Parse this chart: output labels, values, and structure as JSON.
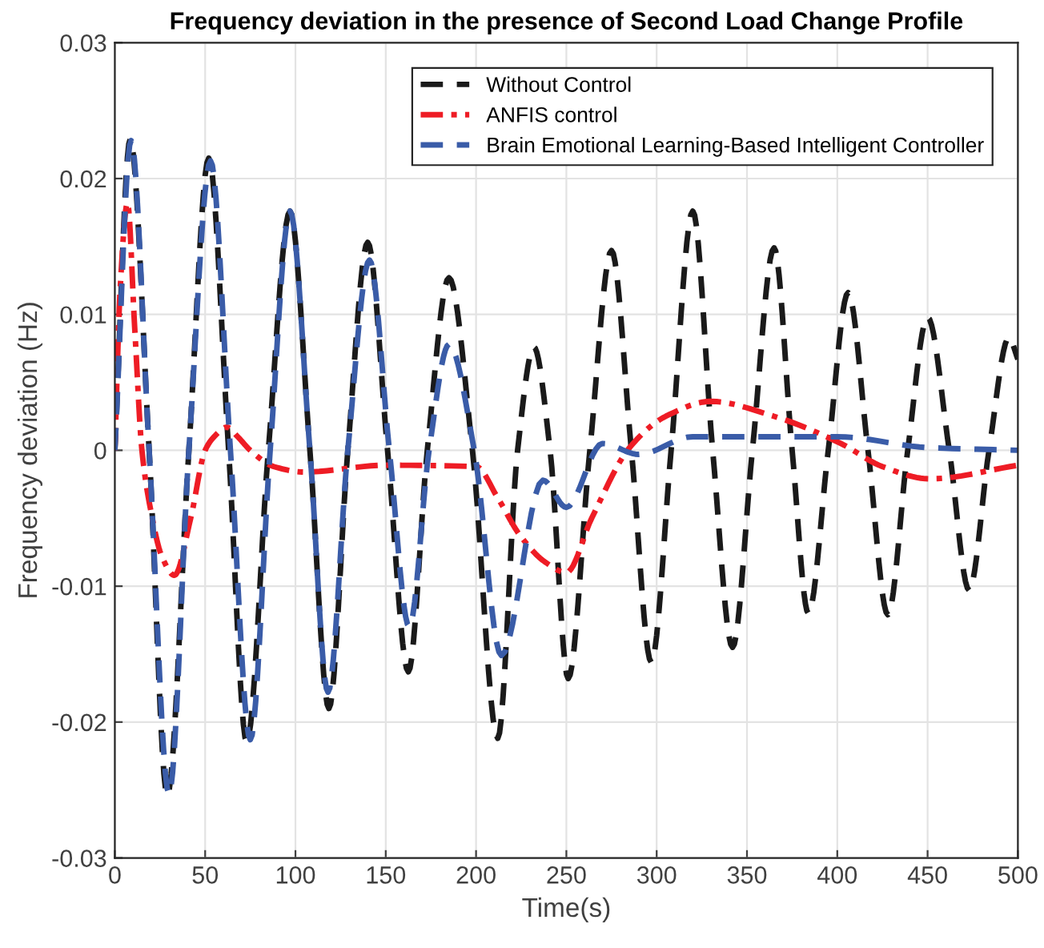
{
  "chart_data": {
    "type": "line",
    "title": "Frequency deviation in the presence of Second Load Change Profile",
    "xlabel": "Time(s)",
    "ylabel": "Frequency deviation (Hz)",
    "xlim": [
      0,
      500
    ],
    "xticks": [
      0,
      50,
      100,
      150,
      200,
      250,
      300,
      350,
      400,
      450,
      500
    ],
    "ylim": [
      -0.03,
      0.03
    ],
    "yticks": [
      -0.03,
      -0.02,
      -0.01,
      0,
      0.01,
      0.02,
      0.03
    ],
    "grid": true,
    "legend": "top right",
    "series": [
      {
        "name": "Without Control",
        "color": "#1a1a1a",
        "line_style": "dashed",
        "x": [
          0,
          8.5,
          19,
          29,
          41,
          52,
          63,
          73,
          85,
          97,
          108,
          118.5,
          129,
          140,
          151,
          162.5,
          173,
          185,
          198,
          212,
          223,
          232,
          241,
          251,
          263,
          275,
          286,
          297,
          308,
          320,
          331,
          342,
          353,
          365,
          375,
          384,
          395,
          406,
          417,
          428,
          439,
          450,
          462,
          473,
          484,
          495,
          500
        ],
        "values": [
          0,
          0.0229,
          0,
          -0.0254,
          0,
          0.0215,
          0,
          -0.0215,
          0,
          0.0176,
          0,
          -0.019,
          0,
          0.0153,
          0,
          -0.0163,
          0,
          0.0127,
          0,
          -0.0212,
          0,
          0.0076,
          0,
          -0.0168,
          0,
          0.0147,
          0,
          -0.0156,
          0,
          0.0176,
          0,
          -0.0145,
          0,
          0.0149,
          0,
          -0.012,
          0,
          0.0116,
          0,
          -0.0121,
          0,
          0.0098,
          0,
          -0.0103,
          0,
          0.0083,
          0.0067
        ]
      },
      {
        "name": "ANFIS control",
        "color": "#ee1c25",
        "line_style": "dashdot",
        "x": [
          0,
          3,
          7,
          11,
          15,
          20,
          26,
          33,
          42,
          50,
          55,
          62,
          68,
          75,
          88,
          105,
          150,
          200,
          212,
          224,
          238,
          250,
          264,
          285,
          305,
          330,
          365,
          402,
          425,
          451,
          500
        ],
        "values": [
          0,
          0.012,
          0.0182,
          0.009,
          0,
          -0.0045,
          -0.0078,
          -0.0092,
          -0.005,
          0,
          0.001,
          0.0017,
          0.001,
          0,
          -0.0012,
          -0.0016,
          -0.0011,
          -0.0012,
          -0.0035,
          -0.0062,
          -0.0082,
          -0.009,
          -0.005,
          0.0002,
          0.0025,
          0.0036,
          0.0025,
          0.0005,
          -0.0012,
          -0.0021,
          -0.0011
        ]
      },
      {
        "name": "Brain Emotional Learning-Based Intelligent Controller",
        "color": "#3a5ca8",
        "line_style": "dashed",
        "x": [
          0,
          9,
          19,
          30,
          41,
          53,
          64,
          75,
          86,
          97,
          108,
          118,
          129,
          141,
          152,
          163,
          174,
          185,
          199,
          214,
          237,
          250,
          270,
          290,
          320,
          400,
          450,
          500
        ],
        "values": [
          0,
          0.0228,
          0,
          -0.0253,
          0,
          0.0213,
          0,
          -0.0213,
          0,
          0.0176,
          0,
          -0.0178,
          0,
          0.014,
          0,
          -0.013,
          0,
          0.0078,
          0,
          -0.0151,
          -0.0022,
          -0.0042,
          0.0005,
          -0.0003,
          0.001,
          0.001,
          0.0002,
          0
        ]
      }
    ]
  }
}
